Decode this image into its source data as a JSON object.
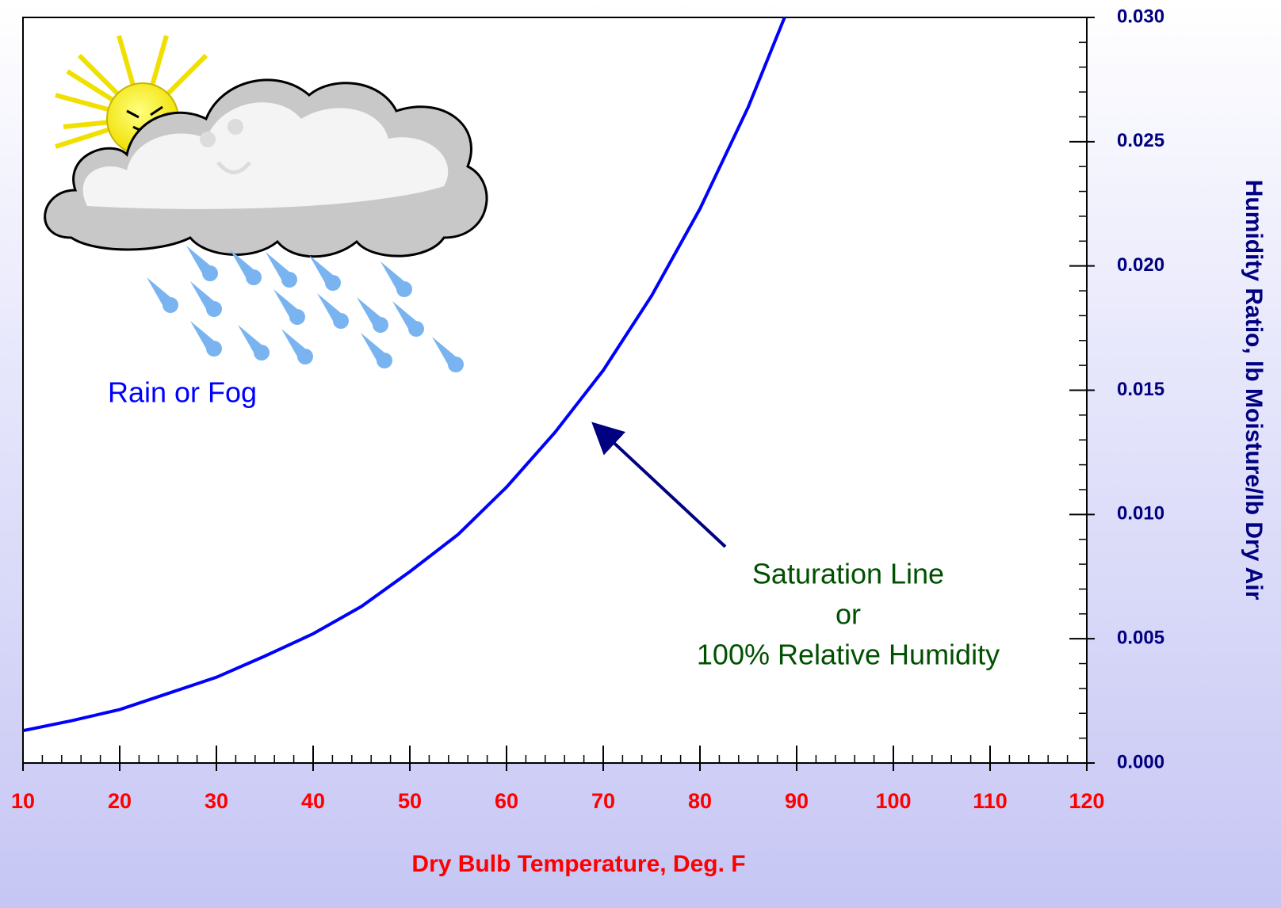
{
  "chart_data": {
    "type": "line",
    "x_label": "Dry Bulb Temperature, Deg. F",
    "y_label": "Humidity Ratio, lb Moisture/lb Dry Air",
    "x": [
      10,
      15,
      20,
      25,
      30,
      35,
      40,
      45,
      50,
      55,
      60,
      65,
      70,
      75,
      80,
      85,
      90
    ],
    "values": [
      0.0013,
      0.0017,
      0.00215,
      0.0028,
      0.00345,
      0.0043,
      0.0052,
      0.0063,
      0.0077,
      0.0092,
      0.0111,
      0.0133,
      0.0158,
      0.0188,
      0.0223,
      0.0264,
      0.0312
    ],
    "color": "#0000ff",
    "xlim": [
      10,
      120
    ],
    "xticks": [
      10,
      20,
      30,
      40,
      50,
      60,
      70,
      80,
      90,
      100,
      110,
      120
    ],
    "ylim": [
      0,
      0.03
    ],
    "yticks": [
      {
        "value": 0,
        "label": "0.000"
      },
      0.005,
      {
        "value": 0.01,
        "label": "0.010"
      },
      0.015,
      {
        "value": 0.02,
        "label": "0.020"
      },
      0.025,
      {
        "value": 0.03,
        "label": "0.030"
      }
    ],
    "y_axis_side": "right",
    "annotations": [
      "Rain or Fog",
      "Saturation Line",
      "or",
      "100% Relative Humidity"
    ]
  }
}
